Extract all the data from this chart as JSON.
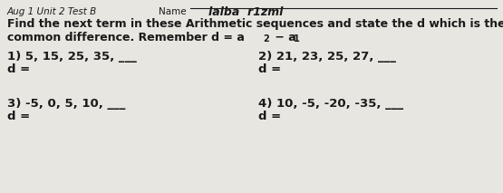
{
  "bg_color": "#e8e6e0",
  "text_color": "#1a1a1a",
  "header_prefix": "Aug 1 Unit 2 Test B",
  "header_name_label": "Name",
  "header_name_written": "lalba  r1zml",
  "title_line1": "Find the next term in these Arithmetic sequences and state the d which is the",
  "title_line2_pre": "common difference. Remember d = a",
  "title_line2_sub2": "2",
  "title_line2_mid": " − a",
  "title_line2_sub1": "1",
  "q1": "1) 5, 15, 25, 35, ___",
  "q1_d": "d =",
  "q2": "2) 21, 23, 25, 27, ___",
  "q2_d": "d =",
  "q3": "3) -5, 0, 5, 10, ___",
  "q3_d": "d =",
  "q4": "4) 10, -5, -20, -35, ___",
  "q4_d": "d =",
  "font_size_header": 7.5,
  "font_size_title": 9.0,
  "font_size_q": 9.5,
  "font_size_d": 9.5,
  "font_size_sub": 7.0,
  "font_size_name_written": 9.0
}
